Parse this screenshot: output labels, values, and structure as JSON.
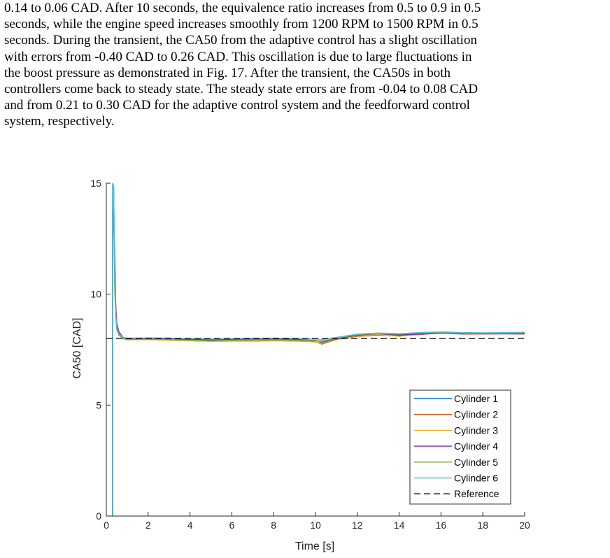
{
  "paragraph": {
    "lines": [
      "0.14 to 0.06 CAD. After 10 seconds, the equivalence ratio increases from 0.5 to 0.9 in 0.5",
      "seconds, while the engine speed increases smoothly from 1200 RPM to 1500 RPM in 0.5",
      "seconds. During the transient, the CA50 from the adaptive control has a slight oscillation",
      "with errors from -0.40 CAD to 0.26 CAD. This oscillation is due to large fluctuations in",
      "the boost pressure as demonstrated in Fig. 17. After the transient, the CA50s in both",
      "controllers come back to steady state. The steady state errors are from -0.04 to 0.08 CAD",
      "and from 0.21 to 0.30 CAD for the adaptive control system and the feedforward control",
      "system, respectively."
    ]
  },
  "chart_data": {
    "type": "line",
    "title": "",
    "xlabel": "Time [s]",
    "ylabel": "CA50 [CAD]",
    "xlim": [
      0,
      20
    ],
    "ylim": [
      0,
      15
    ],
    "xticks": [
      "0",
      "2",
      "4",
      "6",
      "8",
      "10",
      "12",
      "14",
      "16",
      "18",
      "20"
    ],
    "yticks": [
      "0",
      "5",
      "10",
      "15"
    ],
    "grid": false,
    "legend_position": "bottom-right",
    "series": [
      {
        "name": "Cylinder 1",
        "color": "#0072BD",
        "style": "solid",
        "x": [
          0.3,
          0.3,
          0.35,
          0.4,
          0.45,
          0.5,
          0.6,
          0.8,
          1,
          2,
          3,
          4,
          5,
          6,
          7,
          8,
          9,
          10,
          10.3,
          11,
          12,
          13,
          14,
          15,
          16,
          17,
          18,
          19,
          20
        ],
        "y": [
          0,
          15,
          14.8,
          10.5,
          9.0,
          8.5,
          8.2,
          8.0,
          7.98,
          7.98,
          7.97,
          7.95,
          7.92,
          7.95,
          7.96,
          7.97,
          7.95,
          7.9,
          7.88,
          8.0,
          8.15,
          8.2,
          8.18,
          8.22,
          8.25,
          8.22,
          8.2,
          8.22,
          8.23
        ]
      },
      {
        "name": "Cylinder 2",
        "color": "#D95319",
        "style": "solid",
        "x": [
          0.3,
          0.3,
          0.35,
          0.4,
          0.45,
          0.5,
          0.6,
          0.8,
          1,
          2,
          3,
          4,
          5,
          6,
          7,
          8,
          9,
          10,
          10.3,
          11,
          12,
          13,
          14,
          15,
          16,
          17,
          18,
          19,
          20
        ],
        "y": [
          0,
          13.5,
          13.3,
          12.0,
          9.5,
          8.6,
          8.3,
          8.0,
          7.95,
          7.96,
          7.93,
          7.9,
          7.88,
          7.9,
          7.9,
          7.9,
          7.9,
          7.85,
          7.75,
          7.95,
          8.1,
          8.15,
          8.12,
          8.18,
          8.25,
          8.2,
          8.2,
          8.21,
          8.2
        ]
      },
      {
        "name": "Cylinder 3",
        "color": "#EDB120",
        "style": "solid",
        "x": [
          0.3,
          0.3,
          0.35,
          0.4,
          0.45,
          0.5,
          0.6,
          0.8,
          1,
          2,
          3,
          4,
          5,
          6,
          7,
          8,
          9,
          10,
          10.3,
          11,
          12,
          13,
          14,
          15,
          16,
          17,
          18,
          19,
          20
        ],
        "y": [
          0,
          13.5,
          13.2,
          11.0,
          9.2,
          8.5,
          8.2,
          8.0,
          7.94,
          7.95,
          7.92,
          7.9,
          7.87,
          7.88,
          7.88,
          7.89,
          7.88,
          7.84,
          7.78,
          7.95,
          8.12,
          8.18,
          8.1,
          8.2,
          8.28,
          8.22,
          8.21,
          8.22,
          8.21
        ]
      },
      {
        "name": "Cylinder 4",
        "color": "#7E2F8E",
        "style": "solid",
        "x": [
          0.3,
          0.3,
          0.35,
          0.4,
          0.45,
          0.5,
          0.6,
          0.8,
          1,
          2,
          3,
          4,
          5,
          6,
          7,
          8,
          9,
          10,
          10.3,
          11,
          12,
          13,
          14,
          15,
          16,
          17,
          18,
          19,
          20
        ],
        "y": [
          0,
          13.8,
          13.5,
          11.5,
          9.4,
          8.7,
          8.3,
          8.05,
          8.0,
          8.0,
          7.98,
          7.96,
          7.94,
          7.96,
          7.97,
          7.97,
          7.96,
          7.92,
          7.82,
          7.98,
          8.15,
          8.22,
          8.15,
          8.2,
          8.24,
          8.23,
          8.22,
          8.23,
          8.22
        ]
      },
      {
        "name": "Cylinder 5",
        "color": "#77AC30",
        "style": "solid",
        "x": [
          0.3,
          0.3,
          0.35,
          0.4,
          0.45,
          0.5,
          0.6,
          0.8,
          1,
          2,
          3,
          4,
          5,
          6,
          7,
          8,
          9,
          10,
          10.3,
          11,
          12,
          13,
          14,
          15,
          16,
          17,
          18,
          19,
          20
        ],
        "y": [
          0,
          14.2,
          14.0,
          10.2,
          9.0,
          8.4,
          8.15,
          8.0,
          7.96,
          7.97,
          7.95,
          7.93,
          7.9,
          7.93,
          7.94,
          7.94,
          7.93,
          7.9,
          7.85,
          8.0,
          8.18,
          8.22,
          8.2,
          8.25,
          8.27,
          8.25,
          8.24,
          8.25,
          8.26
        ]
      },
      {
        "name": "Cylinder 6",
        "color": "#4DBEEE",
        "style": "solid",
        "x": [
          0.3,
          0.3,
          0.35,
          0.4,
          0.45,
          0.5,
          0.6,
          0.8,
          1,
          2,
          3,
          4,
          5,
          6,
          7,
          8,
          9,
          10,
          10.3,
          11,
          12,
          13,
          14,
          15,
          16,
          17,
          18,
          19,
          20
        ],
        "y": [
          0,
          15,
          14.9,
          11.0,
          9.1,
          8.5,
          8.2,
          8.05,
          8.02,
          8.03,
          8.02,
          8.0,
          7.98,
          8.0,
          8.01,
          8.02,
          8.01,
          7.98,
          7.95,
          8.05,
          8.2,
          8.25,
          8.22,
          8.27,
          8.3,
          8.27,
          8.26,
          8.27,
          8.28
        ]
      },
      {
        "name": "Reference",
        "color": "#000000",
        "style": "dashed",
        "x": [
          0,
          20
        ],
        "y": [
          8,
          8
        ]
      }
    ]
  }
}
